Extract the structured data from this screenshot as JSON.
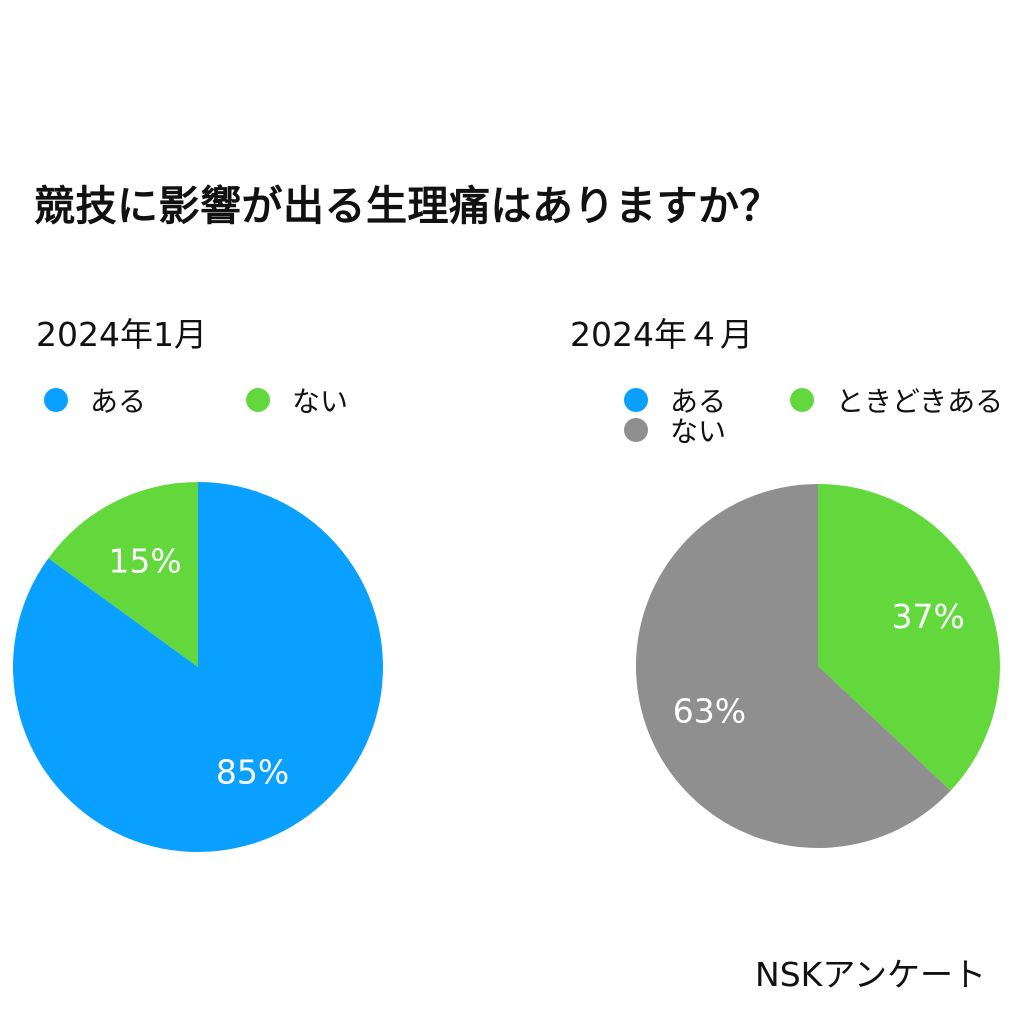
{
  "title": "競技に影響が出る生理痛はありますか？",
  "source": "NSKアンケート",
  "chart_data": [
    {
      "type": "pie",
      "title": "2024年1月",
      "legend": [
        {
          "label": "ある",
          "color": "#0AA0FF"
        },
        {
          "label": "ない",
          "color": "#63D83C"
        }
      ],
      "slices": [
        {
          "label": "ない",
          "value": 15,
          "text": "15%",
          "color": "#63D83C"
        },
        {
          "label": "ある",
          "value": 85,
          "text": "85%",
          "color": "#0AA0FF"
        }
      ]
    },
    {
      "type": "pie",
      "title": "2024年４月",
      "legend": [
        {
          "label": "ある",
          "color": "#0AA0FF"
        },
        {
          "label": "ときどきある",
          "color": "#63D83C"
        },
        {
          "label": "ない",
          "color": "#8F8F8F"
        }
      ],
      "slices": [
        {
          "label": "ときどきある",
          "value": 37,
          "text": "37%",
          "color": "#63D83C"
        },
        {
          "label": "ない",
          "value": 63,
          "text": "63%",
          "color": "#8F8F8F"
        }
      ]
    }
  ]
}
